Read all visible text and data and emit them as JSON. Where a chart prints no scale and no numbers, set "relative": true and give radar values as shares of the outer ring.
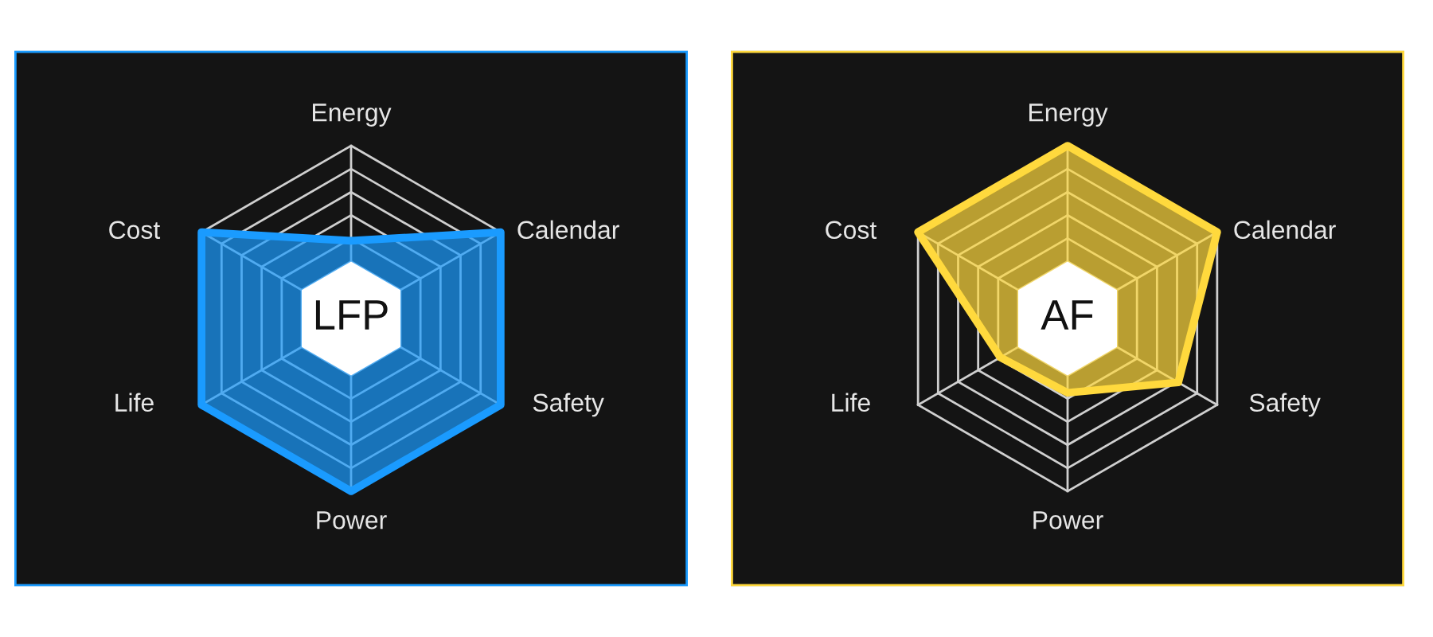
{
  "chart_data": [
    {
      "type": "radar",
      "title": "LFP",
      "relative": true,
      "categories": [
        "Energy",
        "Calendar",
        "Safety",
        "Power",
        "Life",
        "Cost"
      ],
      "series": [
        {
          "color": "#1a9bff",
          "values": [
            0.45,
            1,
            1,
            1,
            1,
            1
          ]
        }
      ]
    },
    {
      "type": "radar",
      "title": "AF",
      "relative": true,
      "categories": [
        "Energy",
        "Calendar",
        "Safety",
        "Power",
        "Life",
        "Cost"
      ],
      "series": [
        {
          "color": "#ffd93d",
          "values": [
            1,
            1,
            0.74,
            0.43,
            0.45,
            1
          ]
        }
      ]
    }
  ]
}
